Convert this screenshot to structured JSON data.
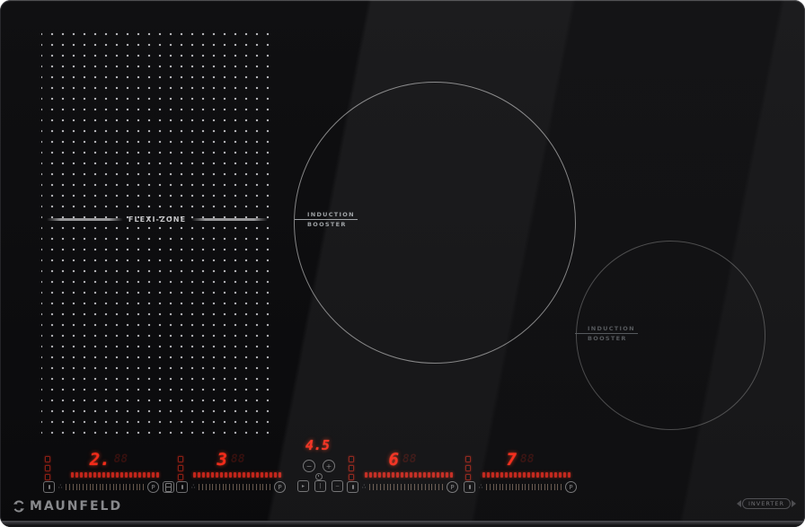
{
  "brand": {
    "logo_text": "MAUNFELD",
    "badge_text": "INVERTER"
  },
  "surface": {
    "flexi_zone_label": "FLEXI-ZONE",
    "large_burner": {
      "label_line1": "INDUCTION",
      "label_line2": "BOOSTER"
    },
    "small_burner": {
      "label_line1": "INDUCTION",
      "label_line2": "BOOSTER"
    }
  },
  "control_panel": {
    "zones": [
      {
        "name": "flexi-front-left",
        "power_level": "2.",
        "ghost_digits": "88",
        "booster_label": "P"
      },
      {
        "name": "flexi-rear-left",
        "power_level": "3",
        "ghost_digits": "88",
        "booster_label": "P"
      },
      {
        "name": "center-large",
        "power_level": "6",
        "ghost_digits": "88",
        "booster_label": "P"
      },
      {
        "name": "right-small",
        "power_level": "7",
        "ghost_digits": "88",
        "booster_label": "P"
      }
    ],
    "timer": {
      "value": "4.5",
      "minus_label": "−",
      "plus_label": "+"
    },
    "buttons": {
      "pause_glyph": "▸",
      "power_glyph": "|",
      "lock_glyph": "−",
      "slider_min_dots_glyph": "∴"
    }
  },
  "colors": {
    "led_red": "#ff2b1b",
    "dash_red": "#cc261c",
    "icon_gray": "#8e8e90",
    "label_gray": "#9fa3a6"
  }
}
